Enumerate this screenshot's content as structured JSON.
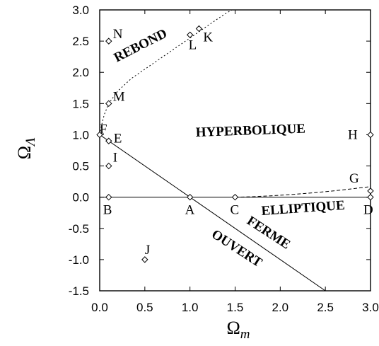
{
  "chart_data": {
    "type": "line",
    "title": "",
    "xlabel": {
      "base": "Ω",
      "sub": "m"
    },
    "ylabel": {
      "base": "Ω",
      "sub": "Λ"
    },
    "xlim": [
      0.0,
      3.0
    ],
    "ylim": [
      -1.5,
      3.0
    ],
    "grid": false,
    "x_ticks": [
      "0.0",
      "0.5",
      "1.0",
      "1.5",
      "2.0",
      "2.5",
      "3.0"
    ],
    "y_ticks": [
      "-1.5",
      "-1.0",
      "-0.5",
      "0.0",
      "0.5",
      "1.0",
      "1.5",
      "2.0",
      "2.5",
      "3.0"
    ],
    "series": [
      {
        "style": "solid",
        "x": [
          0.0,
          3.0
        ],
        "y": [
          0.0,
          0.0
        ]
      },
      {
        "style": "solid",
        "x": [
          0.0,
          2.5
        ],
        "y": [
          1.0,
          -1.5
        ]
      },
      {
        "style": "dashed",
        "x": [
          1.5,
          1.7,
          1.9,
          2.1,
          2.3,
          2.5,
          2.7,
          2.9,
          3.0
        ],
        "y": [
          0.0,
          0.008,
          0.022,
          0.04,
          0.062,
          0.088,
          0.118,
          0.152,
          0.17
        ]
      },
      {
        "style": "dotted",
        "x": [
          0.0,
          0.02,
          0.05,
          0.1,
          0.2,
          0.35,
          0.5,
          0.65,
          0.8,
          0.95,
          1.1,
          1.25,
          1.38,
          1.5
        ],
        "y": [
          1.0,
          1.15,
          1.32,
          1.5,
          1.7,
          1.9,
          2.05,
          2.2,
          2.35,
          2.5,
          2.65,
          2.8,
          2.93,
          3.03
        ]
      }
    ],
    "points": [
      {
        "label": "N",
        "x": 0.1,
        "y": 2.5
      },
      {
        "label": "M",
        "x": 0.1,
        "y": 1.5
      },
      {
        "label": "L",
        "x": 1.0,
        "y": 2.6
      },
      {
        "label": "K",
        "x": 1.1,
        "y": 2.7
      },
      {
        "label": "F",
        "x": 0.0,
        "y": 1.0
      },
      {
        "label": "E",
        "x": 0.1,
        "y": 0.9
      },
      {
        "label": "I",
        "x": 0.1,
        "y": 0.5
      },
      {
        "label": "H",
        "x": 3.0,
        "y": 1.0
      },
      {
        "label": "G",
        "x": 3.0,
        "y": 0.1
      },
      {
        "label": "D",
        "x": 3.0,
        "y": 0.0
      },
      {
        "label": "B",
        "x": 0.1,
        "y": 0.0
      },
      {
        "label": "A",
        "x": 1.0,
        "y": 0.0
      },
      {
        "label": "C",
        "x": 1.5,
        "y": 0.0
      },
      {
        "label": "J",
        "x": 0.5,
        "y": -1.0
      }
    ],
    "annotations": [
      "REBOND",
      "HYPERBOLIQUE",
      "ELLIPTIQUE",
      "FERME",
      "OUVERT"
    ]
  }
}
